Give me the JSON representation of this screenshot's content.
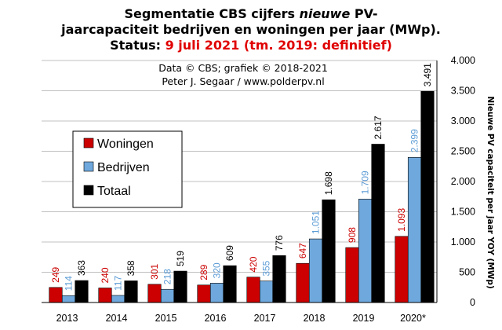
{
  "chart_data": {
    "type": "bar",
    "title": {
      "line1_part1": "Segmentatie CBS cijfers ",
      "line1_italic": "nieuwe",
      "line1_part2": " PV-",
      "line2": "jaarcapaciteit bedrijven en woningen per jaar (MWp).",
      "status_label": "Status: ",
      "status_value": "9 juli 2021 (tm. 2019: definitief)"
    },
    "credits": [
      "Data © CBS; grafiek © 2018-2021",
      "Peter J. Segaar / www.polderpv.nl"
    ],
    "categories": [
      "2013",
      "2014",
      "2015",
      "2016",
      "2017",
      "2018",
      "2019",
      "2020*"
    ],
    "series": [
      {
        "name": "Woningen",
        "color": "#cc0000",
        "label_color": "#cc0000",
        "values": [
          249,
          240,
          301,
          289,
          420,
          647,
          908,
          1093
        ],
        "labels": [
          "249",
          "240",
          "301",
          "289",
          "420",
          "647",
          "908",
          "1.093"
        ]
      },
      {
        "name": "Bedrijven",
        "color": "#6fa8dc",
        "label_color": "#5b9bd5",
        "values": [
          114,
          117,
          218,
          320,
          355,
          1051,
          1709,
          2399
        ],
        "labels": [
          "114",
          "117",
          "218",
          "320",
          "355",
          "1.051",
          "1.709",
          "2.399"
        ]
      },
      {
        "name": "Totaal",
        "color": "#000000",
        "label_color": "#000000",
        "values": [
          363,
          358,
          519,
          609,
          776,
          1698,
          2617,
          3491
        ],
        "labels": [
          "363",
          "358",
          "519",
          "609",
          "776",
          "1.698",
          "2.617",
          "3.491"
        ]
      }
    ],
    "ylabel": "Nieuwe PV capaciteit per jaar YOY (MWp)",
    "xlabel": "",
    "ylim": [
      0,
      4000
    ],
    "y_ticks": [
      0,
      500,
      1000,
      1500,
      2000,
      2500,
      3000,
      3500,
      4000
    ],
    "y_tick_labels": [
      "0",
      "500",
      "1.000",
      "1.500",
      "2.000",
      "2.500",
      "3.000",
      "3.500",
      "4.000"
    ],
    "y_axis_side": "right",
    "grid": true,
    "legend_position": "left",
    "title_color": "#000000",
    "status_color": "#e00000"
  }
}
